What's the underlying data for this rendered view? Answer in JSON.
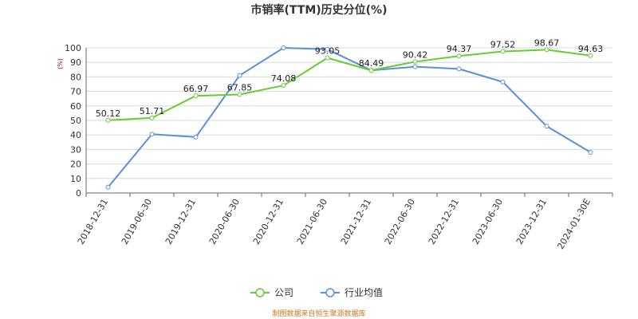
{
  "title": "市销率(TTM)历史分位(%)",
  "source": "制图数据来自恒生聚源数据库",
  "colors": {
    "company": "#66cc33",
    "industry": "#5b8fdb",
    "grid": "#d9d9d9",
    "axis": "#666666"
  },
  "chart_data": {
    "type": "line",
    "title": "市销率(TTM)历史分位(%)",
    "y_unit": "(%)",
    "ylim": [
      0,
      100
    ],
    "y_ticks": [
      0,
      10,
      20,
      30,
      40,
      50,
      60,
      70,
      80,
      90,
      100
    ],
    "categories": [
      "2018-12-31",
      "2019-06-30",
      "2019-12-31",
      "2020-06-30",
      "2020-12-31",
      "2021-06-30",
      "2021-12-31",
      "2022-06-30",
      "2022-12-31",
      "2023-06-30",
      "2023-12-31",
      "2024-01-30E"
    ],
    "grid": true,
    "legend_position": "bottom-center",
    "series": [
      {
        "name": "公司",
        "color": "#66cc33",
        "show_labels": true,
        "values": [
          50.12,
          51.71,
          66.97,
          67.85,
          74.08,
          93.05,
          84.49,
          90.42,
          94.37,
          97.52,
          98.67,
          94.63
        ]
      },
      {
        "name": "行业均值",
        "color": "#5b8fdb",
        "show_labels": false,
        "values": [
          4,
          40.5,
          38.5,
          81,
          100,
          99,
          84.5,
          87,
          85.5,
          76.5,
          46,
          28
        ]
      }
    ]
  }
}
